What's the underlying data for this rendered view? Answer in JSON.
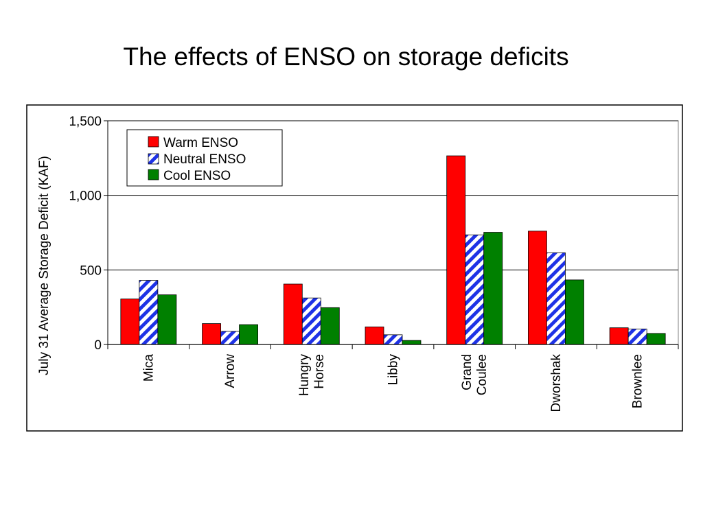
{
  "slide": {
    "title": "The effects of ENSO on storage deficits"
  },
  "colors": {
    "warm": "#FF0000",
    "neutral_stripe": "#1E32E6",
    "neutral_base": "#FFFFFF",
    "cool": "#008000",
    "axis": "#000000"
  },
  "chart_data": {
    "type": "bar",
    "title": "",
    "xlabel": "",
    "ylabel": "July 31 Average Storage Deficit (KAF)",
    "ylim": [
      0,
      1500
    ],
    "yticks": [
      "0",
      "500",
      "1,000",
      "1,500"
    ],
    "ytick_values": [
      0,
      500,
      1000,
      1500
    ],
    "grid": true,
    "legend_position": "top-left",
    "categories": [
      "Mica",
      "Arrow",
      "Hungry Horse",
      "Libby",
      "Grand Coulee",
      "Dworshak",
      "Brownlee"
    ],
    "category_lines": [
      [
        "Mica"
      ],
      [
        "Arrow"
      ],
      [
        "Hungry",
        "Horse"
      ],
      [
        "Libby"
      ],
      [
        "Grand",
        "Coulee"
      ],
      [
        "Dworshak"
      ],
      [
        "Brownlee"
      ]
    ],
    "series": [
      {
        "name": "Warm ENSO",
        "values": [
          305,
          140,
          405,
          118,
          1265,
          760,
          112
        ]
      },
      {
        "name": "Neutral ENSO",
        "values": [
          430,
          88,
          312,
          65,
          735,
          615,
          104
        ]
      },
      {
        "name": "Cool ENSO",
        "values": [
          333,
          133,
          247,
          27,
          752,
          433,
          74
        ]
      }
    ]
  }
}
